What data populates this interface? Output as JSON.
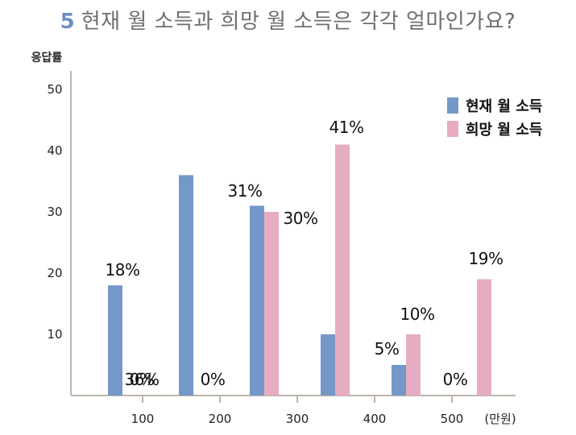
{
  "header": {
    "question_number": "5",
    "title": "현재 월 소득과 희망 월 소득은 각각 얼마인가요?"
  },
  "chart_data": {
    "type": "bar",
    "ylabel": "응답률",
    "xlabel": "",
    "x_unit": "(만원)",
    "ylim": [
      0,
      50
    ],
    "yticks": [
      "10",
      "20",
      "30",
      "40",
      "50"
    ],
    "x_tick_labels": [
      "100",
      "200",
      "300",
      "400",
      "500"
    ],
    "grid": false,
    "legend_position": "top-right",
    "categories": [
      "~100",
      "100~200",
      "200~300",
      "300~400",
      "400~500",
      "500~"
    ],
    "series": [
      {
        "name": "현재 월 소득",
        "color": "#7598c8",
        "values": [
          18,
          36,
          31,
          10,
          5,
          0
        ],
        "labels": [
          "18%",
          "36%",
          "31%",
          "",
          "5%",
          "0%"
        ]
      },
      {
        "name": "희망 월 소득",
        "color": "#e6adc2",
        "values": [
          0,
          0,
          30,
          41,
          10,
          19
        ],
        "labels": [
          "0%",
          "0%",
          "30%",
          "41%",
          "10%",
          "19%"
        ]
      }
    ]
  }
}
